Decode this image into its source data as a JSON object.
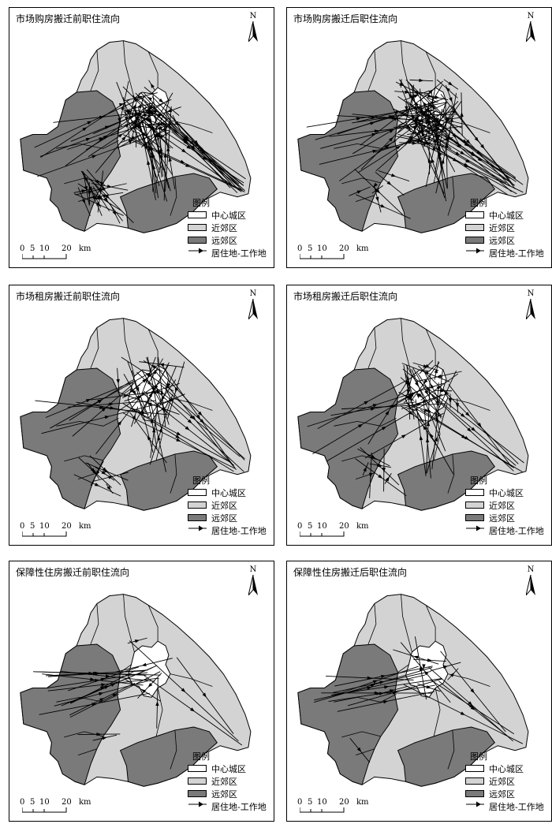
{
  "colors": {
    "central": "#ffffff",
    "inner_suburb": "#d3d3d3",
    "outer_suburb": "#7a7a7a",
    "boundary": "#000000",
    "flow": "#000000"
  },
  "panels": [
    {
      "title": "市场购房搬迁前职住流向",
      "flow_density": "very high"
    },
    {
      "title": "市场购房搬迁后职住流向",
      "flow_density": "very high"
    },
    {
      "title": "市场租房搬迁前职住流向",
      "flow_density": "high"
    },
    {
      "title": "市场租房搬迁后职住流向",
      "flow_density": "high"
    },
    {
      "title": "保障性住房搬迁前职住流向",
      "flow_density": "low"
    },
    {
      "title": "保障性住房搬迁后职住流向",
      "flow_density": "low"
    }
  ],
  "north_label": "N",
  "legend": {
    "title": "图例",
    "items": [
      {
        "label": "中心城区",
        "swatch": "central"
      },
      {
        "label": "近郊区",
        "swatch": "inner_suburb"
      },
      {
        "label": "远郊区",
        "swatch": "outer_suburb"
      },
      {
        "label": "居住地-工作地",
        "swatch": "arrow"
      }
    ]
  },
  "scale_bar": {
    "ticks": [
      "0",
      "5",
      "10",
      "20"
    ],
    "unit": "km"
  }
}
